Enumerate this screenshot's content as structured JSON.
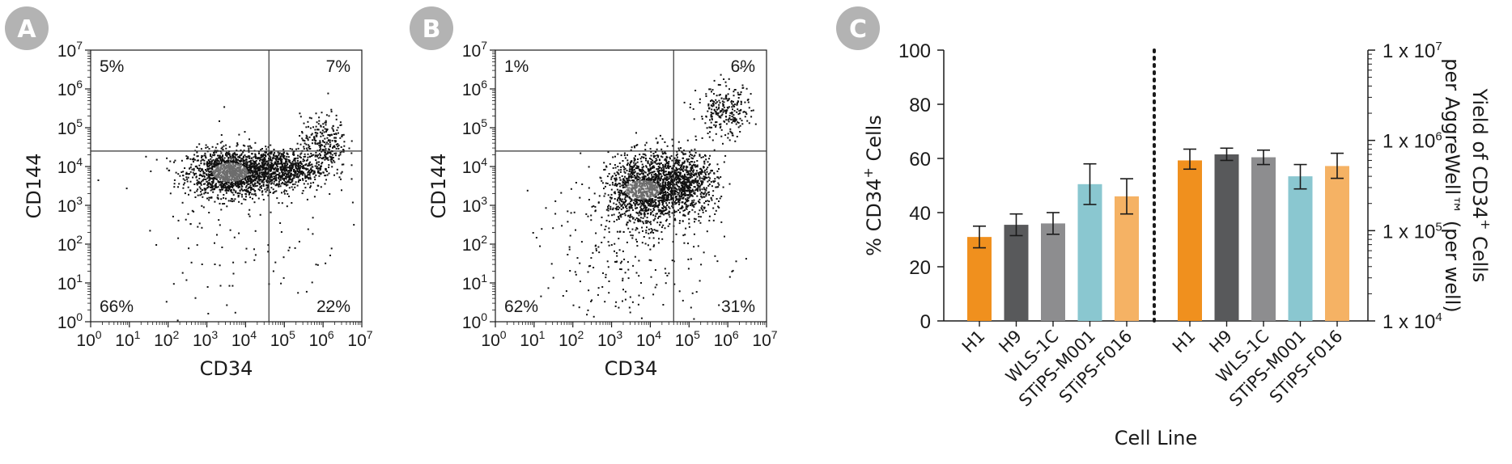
{
  "chart_data": [
    {
      "panel": "A",
      "type": "scatter",
      "title": "",
      "xlabel": "CD34",
      "ylabel": "CD144",
      "xscale": "log",
      "yscale": "log",
      "xlim": [
        1,
        10000000
      ],
      "ylim": [
        1,
        10000000
      ],
      "x_tick_labels": [
        "10",
        "10",
        "10",
        "10",
        "10",
        "10",
        "10",
        "10"
      ],
      "x_tick_exponents": [
        "0",
        "1",
        "2",
        "3",
        "4",
        "5",
        "6",
        "7"
      ],
      "y_tick_labels": [
        "10",
        "10",
        "10",
        "10",
        "10",
        "10",
        "10",
        "10"
      ],
      "y_tick_exponents": [
        "0",
        "1",
        "2",
        "3",
        "4",
        "5",
        "6",
        "7"
      ],
      "gate_x": 40000,
      "gate_y": 25000,
      "quadrants": {
        "upper_left": "5%",
        "upper_right": "7%",
        "lower_left": "66%",
        "lower_right": "22%"
      },
      "populations": [
        {
          "x_log": 3.6,
          "y_log": 3.85,
          "spread_x": 0.55,
          "spread_y": 0.3,
          "weight": 0.55
        },
        {
          "x_log": 4.9,
          "y_log": 3.95,
          "spread_x": 0.55,
          "spread_y": 0.25,
          "weight": 0.3
        },
        {
          "x_log": 6.0,
          "y_log": 4.65,
          "spread_x": 0.3,
          "spread_y": 0.35,
          "weight": 0.1
        },
        {
          "x_log": 4.0,
          "y_log": 2.6,
          "spread_x": 1.3,
          "spread_y": 1.2,
          "weight": 0.05
        }
      ]
    },
    {
      "panel": "B",
      "type": "scatter",
      "title": "",
      "xlabel": "CD34",
      "ylabel": "CD144",
      "xscale": "log",
      "yscale": "log",
      "xlim": [
        1,
        10000000
      ],
      "ylim": [
        1,
        10000000
      ],
      "x_tick_labels": [
        "10",
        "10",
        "10",
        "10",
        "10",
        "10",
        "10",
        "10"
      ],
      "x_tick_exponents": [
        "0",
        "1",
        "2",
        "3",
        "4",
        "5",
        "6",
        "7"
      ],
      "y_tick_labels": [
        "10",
        "10",
        "10",
        "10",
        "10",
        "10",
        "10",
        "10"
      ],
      "y_tick_exponents": [
        "0",
        "1",
        "2",
        "3",
        "4",
        "5",
        "6",
        "7"
      ],
      "gate_x": 40000,
      "gate_y": 25000,
      "quadrants": {
        "upper_left": "1%",
        "upper_right": "6%",
        "lower_left": "62%",
        "lower_right": "31%"
      },
      "populations": [
        {
          "x_log": 3.8,
          "y_log": 3.4,
          "spread_x": 0.45,
          "spread_y": 0.45,
          "weight": 0.45
        },
        {
          "x_log": 4.8,
          "y_log": 3.6,
          "spread_x": 0.45,
          "spread_y": 0.4,
          "weight": 0.35
        },
        {
          "x_log": 5.9,
          "y_log": 5.4,
          "spread_x": 0.35,
          "spread_y": 0.35,
          "weight": 0.1
        },
        {
          "x_log": 3.5,
          "y_log": 1.9,
          "spread_x": 1.2,
          "spread_y": 1.0,
          "weight": 0.1
        }
      ]
    },
    {
      "panel": "C",
      "type": "bar",
      "title": "",
      "xlabel": "Cell Line",
      "ylabel_left": "% CD34",
      "ylabel_left_sup": "+",
      "ylabel_left_tail": " Cells",
      "ylabel_right_line1": "Yield of CD34",
      "ylabel_right_line1_sup": "+",
      "ylabel_right_line1_tail": " Cells",
      "ylabel_right_line2": "per AggreWell™ (per well)",
      "ylim_left": [
        0,
        100
      ],
      "left_ticks": [
        "0",
        "20",
        "40",
        "60",
        "80",
        "100"
      ],
      "ylim_right": [
        10000,
        10000000
      ],
      "yscale_right": "log",
      "right_ticks": [
        {
          "base": "1 x 10",
          "exp": "4"
        },
        {
          "base": "1 x 10",
          "exp": "5"
        },
        {
          "base": "1 x 10",
          "exp": "6"
        },
        {
          "base": "1 x 10",
          "exp": "7"
        }
      ],
      "categories": [
        "H1",
        "H9",
        "WLS-1C",
        "STiPS-M001",
        "STiPS-F016"
      ],
      "colors": [
        "#f0901e",
        "#58595b",
        "#8d8d8f",
        "#8ac7d0",
        "#f5b264"
      ],
      "groups": [
        {
          "axis": "left",
          "values": [
            31,
            35.5,
            36,
            50.5,
            46
          ],
          "errors": [
            4,
            4,
            4,
            7.5,
            6.5
          ]
        },
        {
          "axis": "right",
          "values": [
            600000,
            700000,
            650000,
            400000,
            520000
          ],
          "errors_low": [
            480000,
            600000,
            540000,
            290000,
            380000
          ],
          "errors_high": [
            800000,
            820000,
            780000,
            540000,
            720000
          ]
        }
      ]
    }
  ],
  "badges": {
    "a": "A",
    "b": "B",
    "c": "C"
  },
  "colors": {
    "badge": "#b3b3b3",
    "text": "#1a1a1a",
    "divider": "#1a1a1a"
  }
}
